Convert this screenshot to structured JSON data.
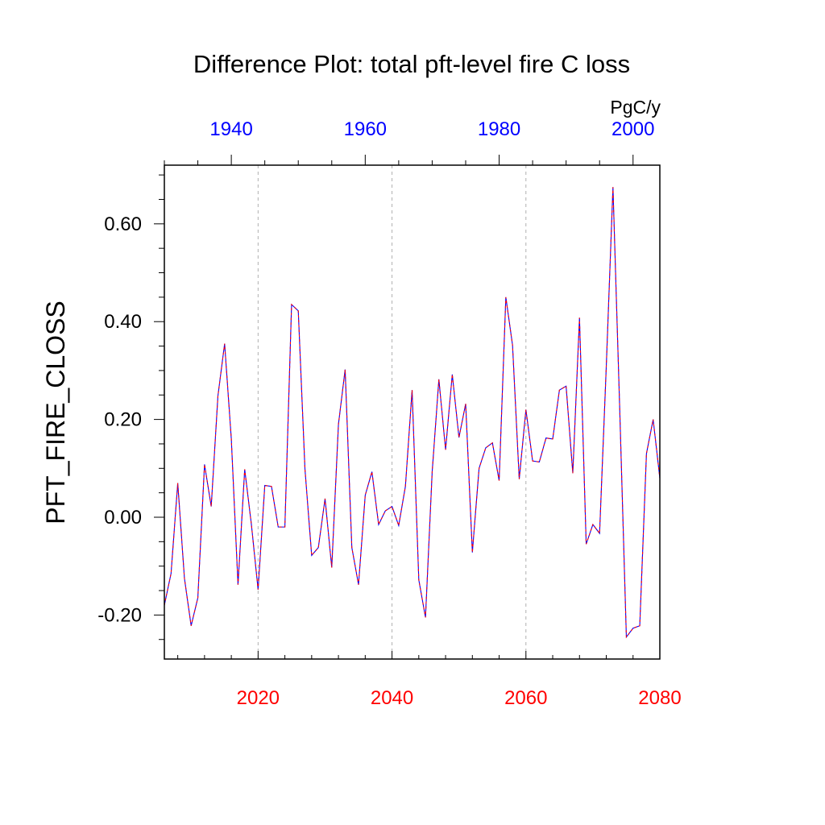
{
  "chart_data": {
    "type": "line",
    "title": "Difference Plot: total pft-level fire C loss",
    "units": "PgC/y",
    "ylabel": "PFT_FIRE_CLOSS",
    "xlabel": "",
    "bottom_axis": {
      "xlim": [
        2006,
        2080
      ],
      "ticks": [
        2020,
        2040,
        2060,
        2080
      ],
      "minor_step": 4,
      "color": "#ff0000"
    },
    "top_axis": {
      "xlim": [
        1930,
        2004
      ],
      "ticks": [
        1940,
        1960,
        1980,
        2000
      ],
      "minor_step": 5,
      "color": "#0000ff"
    },
    "y_axis": {
      "ylim": [
        -0.29,
        0.72
      ],
      "ticks": [
        -0.2,
        0.0,
        0.2,
        0.4,
        0.6
      ],
      "tick_labels": [
        "-0.20",
        "0.00",
        "0.20",
        "0.40",
        "0.60"
      ],
      "minor_step": 0.05
    },
    "grid": {
      "vertical_at": [
        2020,
        2040,
        2060
      ],
      "style": "dashed"
    },
    "x": [
      2006,
      2007,
      2008,
      2009,
      2010,
      2011,
      2012,
      2013,
      2014,
      2015,
      2016,
      2017,
      2018,
      2019,
      2020,
      2021,
      2022,
      2023,
      2024,
      2025,
      2026,
      2027,
      2028,
      2029,
      2030,
      2031,
      2032,
      2033,
      2034,
      2035,
      2036,
      2037,
      2038,
      2039,
      2040,
      2041,
      2042,
      2043,
      2044,
      2045,
      2046,
      2047,
      2048,
      2049,
      2050,
      2051,
      2052,
      2053,
      2054,
      2055,
      2056,
      2057,
      2058,
      2059,
      2060,
      2061,
      2062,
      2063,
      2064,
      2065,
      2066,
      2067,
      2068,
      2069,
      2070,
      2071,
      2072,
      2073,
      2074,
      2075,
      2076,
      2077,
      2078,
      2079,
      2080
    ],
    "series": [
      {
        "name": "PFT_FIRE_CLOSS",
        "color": "#0000ff",
        "dash_color": "#ff0000",
        "values": [
          -0.18,
          -0.115,
          0.07,
          -0.125,
          -0.222,
          -0.165,
          0.108,
          0.022,
          0.248,
          0.355,
          0.16,
          -0.138,
          0.098,
          -0.015,
          -0.148,
          0.065,
          0.063,
          -0.02,
          -0.02,
          0.435,
          0.422,
          0.098,
          -0.078,
          -0.062,
          0.038,
          -0.103,
          0.19,
          0.302,
          -0.062,
          -0.138,
          0.045,
          0.093,
          -0.015,
          0.013,
          0.022,
          -0.017,
          0.063,
          0.26,
          -0.128,
          -0.205,
          0.093,
          0.282,
          0.138,
          0.292,
          0.163,
          0.232,
          -0.072,
          0.1,
          0.142,
          0.152,
          0.075,
          0.45,
          0.352,
          0.078,
          0.22,
          0.115,
          0.113,
          0.162,
          0.16,
          0.26,
          0.268,
          0.09,
          0.408,
          -0.055,
          -0.015,
          -0.033,
          0.308,
          0.675,
          0.225,
          -0.245,
          -0.227,
          -0.222,
          0.13,
          0.2,
          0.08
        ]
      }
    ]
  }
}
